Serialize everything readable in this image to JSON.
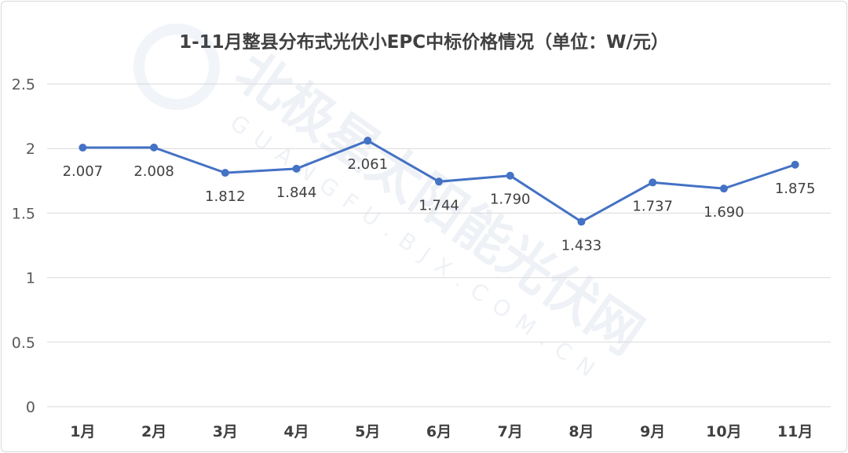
{
  "chart_data": {
    "type": "line",
    "title": "1-11月整县分布式光伏小EPC中标价格情况（单位：W/元）",
    "categories": [
      "1月",
      "2月",
      "3月",
      "4月",
      "5月",
      "6月",
      "7月",
      "8月",
      "9月",
      "10月",
      "11月"
    ],
    "values": [
      2.007,
      2.008,
      1.812,
      1.844,
      2.061,
      1.744,
      1.79,
      1.433,
      1.737,
      1.69,
      1.875
    ],
    "data_labels": [
      "2.007",
      "2.008",
      "1.812",
      "1.844",
      "2.061",
      "1.744",
      "1.790",
      "1.433",
      "1.737",
      "1.690",
      "1.875"
    ],
    "yticks": [
      "0",
      "0.5",
      "1",
      "1.5",
      "2",
      "2.5"
    ],
    "ylim": [
      0,
      2.5
    ],
    "grid": true,
    "legend": "none",
    "line_color": "#4472c4",
    "xlabel": "",
    "ylabel": ""
  },
  "watermark": {
    "text": "北极星太阳能光伏网",
    "subtext": "GUANGFU.BJX.COM.CN"
  }
}
